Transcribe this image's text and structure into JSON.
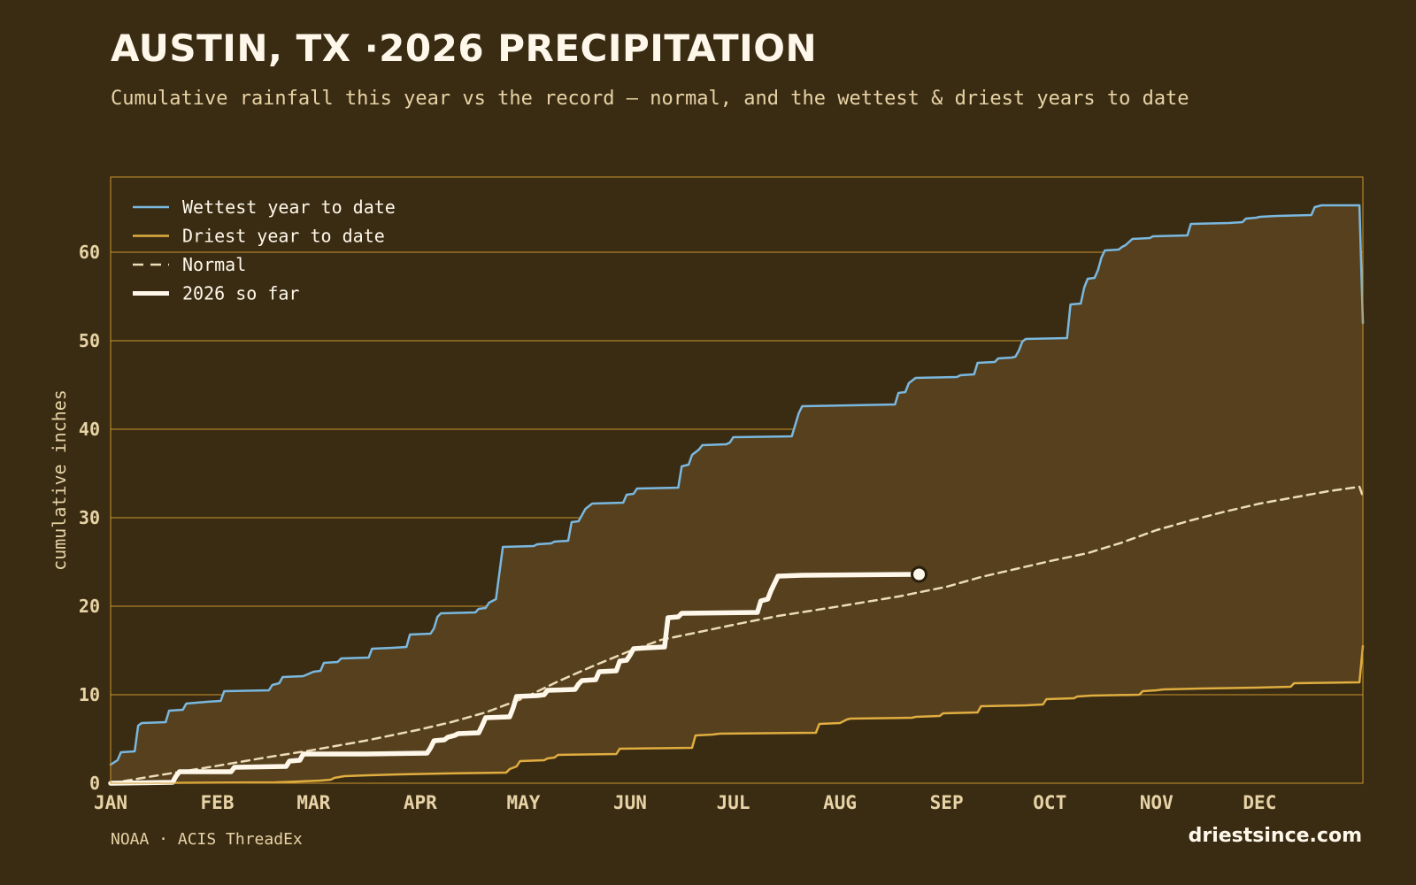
{
  "header": {
    "title": "AUSTIN, TX ·2026 PRECIPITATION",
    "subtitle": "Cumulative rainfall this year vs the record — normal, and the wettest & driest years to date"
  },
  "footer": {
    "source": "NOAA · ACIS ThreadEx",
    "brand": "driestsince.com"
  },
  "colors": {
    "background": "#3a2c13",
    "band": "#56401d",
    "grid": "#c9952e",
    "wettest": "#7ab8e0",
    "driest": "#e0ad40",
    "normal": "#ecdcb8",
    "current": "#fff8ea"
  },
  "chart_data": {
    "type": "line",
    "title": "AUSTIN, TX ·2026 PRECIPITATION",
    "subtitle": "Cumulative rainfall this year vs the record — normal, and the wettest & driest years to date",
    "xlabel": "",
    "ylabel": "cumulative inches",
    "x_unit": "day of year",
    "xlim": [
      1,
      365
    ],
    "ylim": [
      0,
      68.5
    ],
    "yticks": [
      0,
      10,
      20,
      30,
      40,
      50,
      60
    ],
    "month_ticks": [
      {
        "label": "JAN",
        "day": 1
      },
      {
        "label": "FEB",
        "day": 32
      },
      {
        "label": "MAR",
        "day": 60
      },
      {
        "label": "APR",
        "day": 91
      },
      {
        "label": "MAY",
        "day": 121
      },
      {
        "label": "JUN",
        "day": 152
      },
      {
        "label": "JUL",
        "day": 182
      },
      {
        "label": "AUG",
        "day": 213
      },
      {
        "label": "SEP",
        "day": 244
      },
      {
        "label": "OCT",
        "day": 274
      },
      {
        "label": "NOV",
        "day": 305
      },
      {
        "label": "DEC",
        "day": 335
      }
    ],
    "grid": true,
    "legend_position": "top-left",
    "band_between": [
      "Driest year to date",
      "Wettest year to date"
    ],
    "series": [
      {
        "name": "Wettest year to date",
        "style": "solid",
        "points": [
          [
            1,
            2.1
          ],
          [
            3,
            2.6
          ],
          [
            4,
            3.5
          ],
          [
            8,
            3.6
          ],
          [
            9,
            6.5
          ],
          [
            10,
            6.8
          ],
          [
            17,
            6.9
          ],
          [
            18,
            8.2
          ],
          [
            22,
            8.3
          ],
          [
            23,
            9.0
          ],
          [
            29,
            9.2
          ],
          [
            33,
            9.3
          ],
          [
            34,
            10.4
          ],
          [
            47,
            10.5
          ],
          [
            48,
            11.1
          ],
          [
            50,
            11.3
          ],
          [
            51,
            12.0
          ],
          [
            57,
            12.1
          ],
          [
            60,
            12.6
          ],
          [
            62,
            12.7
          ],
          [
            63,
            13.6
          ],
          [
            67,
            13.7
          ],
          [
            68,
            14.1
          ],
          [
            76,
            14.2
          ],
          [
            77,
            15.2
          ],
          [
            83,
            15.3
          ],
          [
            87,
            15.4
          ],
          [
            88,
            16.8
          ],
          [
            94,
            16.9
          ],
          [
            95,
            17.5
          ],
          [
            96,
            18.8
          ],
          [
            97,
            19.2
          ],
          [
            107,
            19.3
          ],
          [
            108,
            19.7
          ],
          [
            110,
            19.8
          ],
          [
            111,
            20.4
          ],
          [
            113,
            20.8
          ],
          [
            115,
            26.7
          ],
          [
            124,
            26.8
          ],
          [
            125,
            27.0
          ],
          [
            129,
            27.1
          ],
          [
            130,
            27.3
          ],
          [
            134,
            27.4
          ],
          [
            135,
            29.5
          ],
          [
            137,
            29.6
          ],
          [
            138,
            30.3
          ],
          [
            139,
            31.0
          ],
          [
            141,
            31.6
          ],
          [
            150,
            31.7
          ],
          [
            151,
            32.6
          ],
          [
            153,
            32.7
          ],
          [
            154,
            33.3
          ],
          [
            166,
            33.4
          ],
          [
            167,
            35.8
          ],
          [
            169,
            36.0
          ],
          [
            170,
            37.1
          ],
          [
            172,
            37.7
          ],
          [
            173,
            38.2
          ],
          [
            180,
            38.3
          ],
          [
            181,
            38.5
          ],
          [
            182,
            39.1
          ],
          [
            199,
            39.2
          ],
          [
            200,
            40.5
          ],
          [
            201,
            41.8
          ],
          [
            202,
            42.6
          ],
          [
            216,
            42.7
          ],
          [
            229,
            42.8
          ],
          [
            230,
            44.1
          ],
          [
            232,
            44.2
          ],
          [
            233,
            45.2
          ],
          [
            235,
            45.8
          ],
          [
            247,
            45.9
          ],
          [
            248,
            46.1
          ],
          [
            252,
            46.2
          ],
          [
            253,
            47.5
          ],
          [
            258,
            47.6
          ],
          [
            259,
            48.0
          ],
          [
            263,
            48.1
          ],
          [
            264,
            48.2
          ],
          [
            265,
            48.9
          ],
          [
            266,
            49.9
          ],
          [
            267,
            50.2
          ],
          [
            279,
            50.3
          ],
          [
            280,
            54.1
          ],
          [
            283,
            54.2
          ],
          [
            284,
            56.0
          ],
          [
            285,
            57.0
          ],
          [
            287,
            57.1
          ],
          [
            288,
            58.0
          ],
          [
            289,
            59.4
          ],
          [
            290,
            60.2
          ],
          [
            294,
            60.3
          ],
          [
            295,
            60.6
          ],
          [
            296,
            60.8
          ],
          [
            298,
            61.5
          ],
          [
            303,
            61.6
          ],
          [
            304,
            61.8
          ],
          [
            314,
            61.9
          ],
          [
            315,
            63.2
          ],
          [
            326,
            63.3
          ],
          [
            330,
            63.4
          ],
          [
            331,
            63.8
          ],
          [
            334,
            63.9
          ],
          [
            335,
            64.0
          ],
          [
            340,
            64.1
          ],
          [
            350,
            64.2
          ],
          [
            351,
            65.1
          ],
          [
            353,
            65.3
          ],
          [
            364,
            65.3
          ],
          [
            365,
            52.0
          ]
        ]
      },
      {
        "name": "Driest year to date",
        "style": "solid",
        "points": [
          [
            1,
            0.0
          ],
          [
            49,
            0.1
          ],
          [
            56,
            0.2
          ],
          [
            62,
            0.3
          ],
          [
            65,
            0.4
          ],
          [
            66,
            0.6
          ],
          [
            69,
            0.8
          ],
          [
            76,
            0.9
          ],
          [
            85,
            1.0
          ],
          [
            98,
            1.1
          ],
          [
            116,
            1.2
          ],
          [
            117,
            1.6
          ],
          [
            119,
            1.9
          ],
          [
            120,
            2.5
          ],
          [
            127,
            2.6
          ],
          [
            128,
            2.8
          ],
          [
            130,
            2.9
          ],
          [
            131,
            3.2
          ],
          [
            148,
            3.3
          ],
          [
            149,
            3.9
          ],
          [
            170,
            4.0
          ],
          [
            171,
            5.4
          ],
          [
            176,
            5.5
          ],
          [
            178,
            5.6
          ],
          [
            206,
            5.7
          ],
          [
            207,
            6.7
          ],
          [
            213,
            6.8
          ],
          [
            215,
            7.2
          ],
          [
            216,
            7.3
          ],
          [
            234,
            7.4
          ],
          [
            235,
            7.5
          ],
          [
            242,
            7.6
          ],
          [
            243,
            7.9
          ],
          [
            253,
            8.0
          ],
          [
            254,
            8.7
          ],
          [
            267,
            8.8
          ],
          [
            272,
            8.9
          ],
          [
            273,
            9.5
          ],
          [
            281,
            9.6
          ],
          [
            282,
            9.8
          ],
          [
            286,
            9.9
          ],
          [
            300,
            10.0
          ],
          [
            301,
            10.4
          ],
          [
            305,
            10.5
          ],
          [
            307,
            10.6
          ],
          [
            318,
            10.7
          ],
          [
            334,
            10.8
          ],
          [
            344,
            10.9
          ],
          [
            345,
            11.3
          ],
          [
            364,
            11.4
          ],
          [
            365,
            15.5
          ]
        ]
      },
      {
        "name": "Normal",
        "style": "dashed",
        "points": [
          [
            1,
            0.0
          ],
          [
            15,
            0.9
          ],
          [
            31,
            1.9
          ],
          [
            46,
            2.9
          ],
          [
            59,
            3.7
          ],
          [
            75,
            4.8
          ],
          [
            90,
            6.0
          ],
          [
            100,
            6.9
          ],
          [
            110,
            8.0
          ],
          [
            121,
            9.6
          ],
          [
            131,
            11.5
          ],
          [
            141,
            13.2
          ],
          [
            151,
            14.8
          ],
          [
            161,
            16.2
          ],
          [
            171,
            17.0
          ],
          [
            182,
            17.9
          ],
          [
            195,
            18.9
          ],
          [
            213,
            20.0
          ],
          [
            230,
            21.1
          ],
          [
            244,
            22.2
          ],
          [
            254,
            23.3
          ],
          [
            264,
            24.2
          ],
          [
            274,
            25.1
          ],
          [
            285,
            26.0
          ],
          [
            295,
            27.2
          ],
          [
            305,
            28.6
          ],
          [
            315,
            29.7
          ],
          [
            325,
            30.7
          ],
          [
            335,
            31.6
          ],
          [
            345,
            32.3
          ],
          [
            355,
            33.0
          ],
          [
            364,
            33.5
          ],
          [
            365,
            32.4
          ]
        ]
      },
      {
        "name": "2026 so far",
        "style": "bold",
        "points": [
          [
            1,
            0.0
          ],
          [
            19,
            0.1
          ],
          [
            20,
            0.8
          ],
          [
            21,
            1.3
          ],
          [
            36,
            1.3
          ],
          [
            37,
            1.8
          ],
          [
            52,
            1.9
          ],
          [
            53,
            2.5
          ],
          [
            56,
            2.6
          ],
          [
            57,
            3.3
          ],
          [
            75,
            3.3
          ],
          [
            93,
            3.4
          ],
          [
            94,
            4.0
          ],
          [
            95,
            4.8
          ],
          [
            98,
            4.9
          ],
          [
            99,
            5.2
          ],
          [
            101,
            5.4
          ],
          [
            102,
            5.6
          ],
          [
            108,
            5.7
          ],
          [
            109,
            6.5
          ],
          [
            110,
            7.4
          ],
          [
            117,
            7.5
          ],
          [
            118,
            8.5
          ],
          [
            119,
            9.8
          ],
          [
            125,
            9.9
          ],
          [
            127,
            10.0
          ],
          [
            128,
            10.5
          ],
          [
            136,
            10.6
          ],
          [
            137,
            11.2
          ],
          [
            138,
            11.6
          ],
          [
            142,
            11.7
          ],
          [
            143,
            12.6
          ],
          [
            148,
            12.7
          ],
          [
            149,
            13.8
          ],
          [
            151,
            13.9
          ],
          [
            152,
            14.5
          ],
          [
            153,
            15.2
          ],
          [
            157,
            15.3
          ],
          [
            162,
            15.4
          ],
          [
            163,
            18.7
          ],
          [
            166,
            18.8
          ],
          [
            167,
            19.2
          ],
          [
            189,
            19.3
          ],
          [
            190,
            20.6
          ],
          [
            192,
            20.8
          ],
          [
            193,
            21.8
          ],
          [
            195,
            23.4
          ],
          [
            202,
            23.5
          ],
          [
            236,
            23.6
          ]
        ],
        "end_marker": true
      }
    ]
  }
}
